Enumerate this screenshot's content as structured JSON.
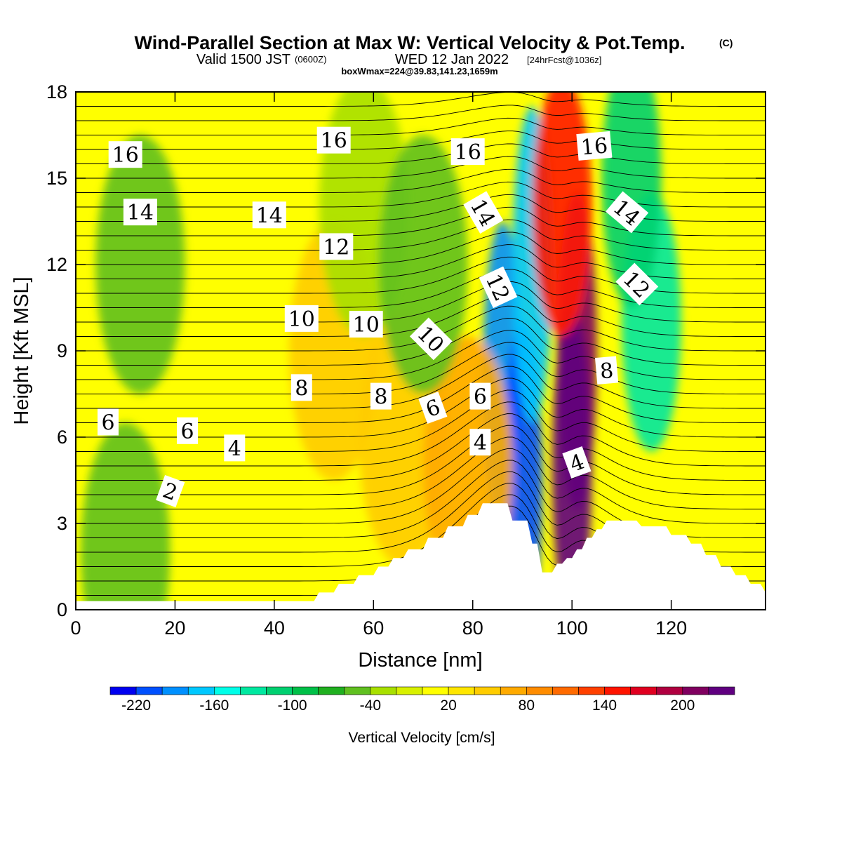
{
  "header": {
    "title": "Wind-Parallel Section at Max W: Vertical Velocity & Pot.Temp.",
    "title_tag": "(C)",
    "valid_prefix": "Valid 1500 JST",
    "valid_z": "(0600Z)",
    "valid_date": "WED 12 Jan 2022",
    "forecast_tag": "[24hrFcst@1036z]",
    "box_info": "boxWmax=224@39.83,141.23,1659m"
  },
  "chart_data": {
    "type": "heatmap",
    "xlabel": "Distance [nm]",
    "ylabel": "Height [Kft MSL]",
    "xlim": [
      0,
      139
    ],
    "ylim": [
      0,
      18
    ],
    "x_ticks": [
      "0",
      "20",
      "40",
      "60",
      "80",
      "100",
      "120"
    ],
    "x_tick_values": [
      0,
      20,
      40,
      60,
      80,
      100,
      120
    ],
    "y_ticks": [
      "0",
      "3",
      "6",
      "9",
      "12",
      "15",
      "18"
    ],
    "y_tick_values": [
      0,
      3,
      6,
      9,
      12,
      15,
      18
    ],
    "colorbar": {
      "label": "Vertical Velocity [cm/s]",
      "tick_labels": [
        "-220",
        "-160",
        "-100",
        "-40",
        "20",
        "80",
        "140",
        "200"
      ],
      "tick_values": [
        -220,
        -160,
        -100,
        -40,
        20,
        80,
        140,
        200
      ],
      "levels": [
        -240,
        -220,
        -200,
        -180,
        -160,
        -140,
        -120,
        -100,
        -80,
        -60,
        -40,
        -20,
        0,
        20,
        40,
        60,
        80,
        100,
        120,
        140,
        160,
        180,
        200,
        220,
        240
      ],
      "colors": [
        "#0000f0",
        "#0050ff",
        "#0090ff",
        "#00c8ff",
        "#00ffe8",
        "#00e8a0",
        "#00d070",
        "#00c048",
        "#20b020",
        "#60c020",
        "#a8e000",
        "#d8f000",
        "#ffff00",
        "#ffe600",
        "#ffcc00",
        "#ffaa00",
        "#ff8c00",
        "#ff6a00",
        "#ff4000",
        "#ff1400",
        "#e00020",
        "#b00040",
        "#800060",
        "#600080"
      ]
    },
    "terrain_profile": [
      [
        0,
        0.3
      ],
      [
        48,
        0.3
      ],
      [
        49,
        0.6
      ],
      [
        52,
        0.6
      ],
      [
        53,
        0.9
      ],
      [
        56,
        0.9
      ],
      [
        57,
        1.2
      ],
      [
        60,
        1.2
      ],
      [
        61,
        1.5
      ],
      [
        63,
        1.5
      ],
      [
        64,
        1.8
      ],
      [
        66,
        1.8
      ],
      [
        67,
        2.1
      ],
      [
        70,
        2.1
      ],
      [
        71,
        2.5
      ],
      [
        74,
        2.5
      ],
      [
        75,
        2.9
      ],
      [
        78,
        2.9
      ],
      [
        79,
        3.3
      ],
      [
        81,
        3.3
      ],
      [
        82,
        3.7
      ],
      [
        87,
        3.7
      ],
      [
        88,
        3.1
      ],
      [
        91,
        3.1
      ],
      [
        92,
        2.3
      ],
      [
        93,
        2.3
      ],
      [
        94,
        1.3
      ],
      [
        96,
        1.3
      ],
      [
        97,
        1.6
      ],
      [
        98,
        1.6
      ],
      [
        99,
        1.8
      ],
      [
        100,
        1.8
      ],
      [
        101,
        2.1
      ],
      [
        102,
        2.1
      ],
      [
        103,
        2.5
      ],
      [
        104,
        2.5
      ],
      [
        105,
        2.8
      ],
      [
        106,
        2.8
      ],
      [
        107,
        3.1
      ],
      [
        113,
        3.1
      ],
      [
        114,
        2.9
      ],
      [
        119,
        2.9
      ],
      [
        120,
        2.6
      ],
      [
        123,
        2.6
      ],
      [
        124,
        2.3
      ],
      [
        126,
        2.3
      ],
      [
        127,
        1.9
      ],
      [
        129,
        1.9
      ],
      [
        130,
        1.5
      ],
      [
        132,
        1.5
      ],
      [
        133,
        1.2
      ],
      [
        135,
        1.2
      ],
      [
        136,
        0.9
      ],
      [
        138,
        0.9
      ],
      [
        139,
        0.6
      ]
    ],
    "w_features": [
      {
        "x": 86,
        "y": 8,
        "value": -200
      },
      {
        "x": 90,
        "y": 4.5,
        "value": -220
      },
      {
        "x": 92,
        "y": 12,
        "value": -170
      },
      {
        "x": 101,
        "y": 9,
        "value": 210
      },
      {
        "x": 100,
        "y": 5,
        "value": 224
      },
      {
        "x": 98,
        "y": 14,
        "value": 150
      },
      {
        "x": 116,
        "y": 10,
        "value": -130
      },
      {
        "x": 112,
        "y": 15,
        "value": -110
      },
      {
        "x": 13,
        "y": 12,
        "value": -50
      },
      {
        "x": 10,
        "y": 2,
        "value": -50
      },
      {
        "x": 52,
        "y": 9,
        "value": 40
      },
      {
        "x": 66,
        "y": 6,
        "value": 40
      },
      {
        "x": 79,
        "y": 5,
        "value": 60
      },
      {
        "x": 58,
        "y": 14,
        "value": -30
      },
      {
        "x": 70,
        "y": 12,
        "value": -60
      }
    ],
    "theta_contour_labels": [
      {
        "text": "16",
        "x": 10,
        "y": 15.8,
        "angle": 0
      },
      {
        "text": "16",
        "x": 52,
        "y": 16.3,
        "angle": 0
      },
      {
        "text": "16",
        "x": 79,
        "y": 15.9,
        "angle": 0
      },
      {
        "text": "16",
        "x": 104.5,
        "y": 16.1,
        "angle": -5
      },
      {
        "text": "14",
        "x": 13,
        "y": 13.8,
        "angle": 0
      },
      {
        "text": "14",
        "x": 39,
        "y": 13.7,
        "angle": 0
      },
      {
        "text": "14",
        "x": 82,
        "y": 13.8,
        "angle": 60
      },
      {
        "text": "14",
        "x": 111,
        "y": 13.8,
        "angle": 40
      },
      {
        "text": "12",
        "x": 52.5,
        "y": 12.6,
        "angle": 0
      },
      {
        "text": "12",
        "x": 85,
        "y": 11.2,
        "angle": 65
      },
      {
        "text": "12",
        "x": 113,
        "y": 11.3,
        "angle": 45
      },
      {
        "text": "10",
        "x": 45.5,
        "y": 10.1,
        "angle": 0
      },
      {
        "text": "10",
        "x": 58.5,
        "y": 9.9,
        "angle": 0
      },
      {
        "text": "10",
        "x": 71.5,
        "y": 9.4,
        "angle": 45
      },
      {
        "text": "8",
        "x": 45.5,
        "y": 7.7,
        "angle": 0
      },
      {
        "text": "8",
        "x": 61.5,
        "y": 7.4,
        "angle": 0
      },
      {
        "text": "8",
        "x": 107,
        "y": 8.3,
        "angle": -5
      },
      {
        "text": "6",
        "x": 6.5,
        "y": 6.5,
        "angle": 0
      },
      {
        "text": "6",
        "x": 22.5,
        "y": 6.2,
        "angle": 0
      },
      {
        "text": "6",
        "x": 72,
        "y": 7.0,
        "angle": -20
      },
      {
        "text": "6",
        "x": 81.5,
        "y": 7.4,
        "angle": 0
      },
      {
        "text": "4",
        "x": 32,
        "y": 5.6,
        "angle": 0
      },
      {
        "text": "4",
        "x": 81.5,
        "y": 5.8,
        "angle": 0
      },
      {
        "text": "4",
        "x": 101,
        "y": 5.1,
        "angle": -20
      },
      {
        "text": "2",
        "x": 19,
        "y": 4.1,
        "angle": 20
      }
    ],
    "grid": false,
    "legend": "colorbar-bottom"
  }
}
